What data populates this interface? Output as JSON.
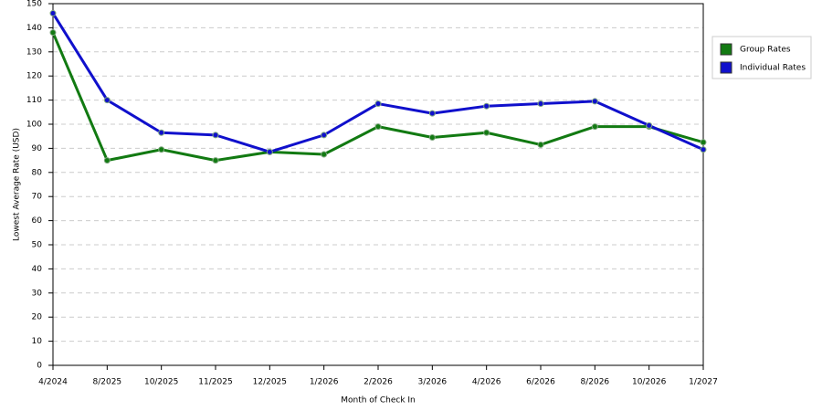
{
  "chart_data": {
    "type": "line",
    "x_label": "Month of Check In",
    "y_label": "Lowest Average Rate (USD)",
    "categories": [
      "4/2024",
      "8/2025",
      "10/2025",
      "11/2025",
      "12/2025",
      "1/2026",
      "2/2026",
      "3/2026",
      "4/2026",
      "6/2026",
      "8/2026",
      "10/2026",
      "1/2027"
    ],
    "series": [
      {
        "name": "Group Rates",
        "color": "#127a12",
        "values": [
          138,
          85,
          89.5,
          85,
          88.5,
          87.5,
          99,
          94.5,
          96.5,
          91.5,
          99,
          99,
          92.5
        ]
      },
      {
        "name": "Individual Rates",
        "color": "#1010cc",
        "values": [
          146,
          110,
          96.5,
          95.5,
          88.5,
          95.5,
          108.5,
          104.5,
          107.5,
          108.5,
          109.5,
          99.5,
          89.5
        ]
      }
    ],
    "ylim": [
      0,
      150
    ],
    "yticks": [
      0,
      10,
      20,
      30,
      40,
      50,
      60,
      70,
      80,
      90,
      100,
      110,
      120,
      130,
      140,
      150
    ],
    "grid": true,
    "legend": "right"
  }
}
